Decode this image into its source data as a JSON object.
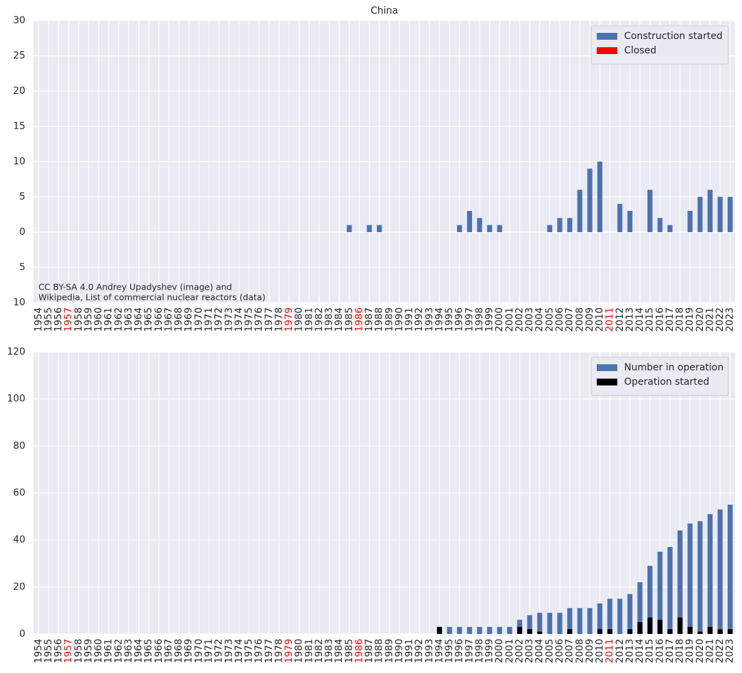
{
  "chart_data": [
    {
      "type": "bar",
      "title": "China",
      "categories": [
        "1954",
        "1955",
        "1956",
        "1957",
        "1958",
        "1959",
        "1960",
        "1961",
        "1962",
        "1963",
        "1964",
        "1965",
        "1966",
        "1967",
        "1968",
        "1969",
        "1970",
        "1971",
        "1972",
        "1973",
        "1974",
        "1975",
        "1976",
        "1977",
        "1978",
        "1979",
        "1980",
        "1981",
        "1982",
        "1983",
        "1984",
        "1985",
        "1986",
        "1987",
        "1988",
        "1989",
        "1990",
        "1991",
        "1992",
        "1993",
        "1994",
        "1995",
        "1996",
        "1997",
        "1998",
        "1999",
        "2000",
        "2001",
        "2002",
        "2003",
        "2004",
        "2005",
        "2006",
        "2007",
        "2008",
        "2009",
        "2010",
        "2011",
        "2012",
        "2013",
        "2014",
        "2015",
        "2016",
        "2017",
        "2018",
        "2019",
        "2020",
        "2021",
        "2022",
        "2023"
      ],
      "highlighted_categories": [
        "1957",
        "1979",
        "1986",
        "2011"
      ],
      "highlight_color": "#ff0000",
      "series": [
        {
          "name": "Construction started",
          "color": "#4c72b0",
          "values": [
            0,
            0,
            0,
            0,
            0,
            0,
            0,
            0,
            0,
            0,
            0,
            0,
            0,
            0,
            0,
            0,
            0,
            0,
            0,
            0,
            0,
            0,
            0,
            0,
            0,
            0,
            0,
            0,
            0,
            0,
            0,
            1,
            0,
            1,
            1,
            0,
            0,
            0,
            0,
            0,
            0,
            0,
            1,
            3,
            2,
            1,
            1,
            0,
            0,
            0,
            0,
            1,
            2,
            2,
            6,
            9,
            10,
            0,
            4,
            3,
            0,
            6,
            2,
            1,
            0,
            3,
            5,
            6,
            5,
            5
          ]
        },
        {
          "name": "Closed",
          "color": "#ff0000",
          "values": [
            0,
            0,
            0,
            0,
            0,
            0,
            0,
            0,
            0,
            0,
            0,
            0,
            0,
            0,
            0,
            0,
            0,
            0,
            0,
            0,
            0,
            0,
            0,
            0,
            0,
            0,
            0,
            0,
            0,
            0,
            0,
            0,
            0,
            0,
            0,
            0,
            0,
            0,
            0,
            0,
            0,
            0,
            0,
            0,
            0,
            0,
            0,
            0,
            0,
            0,
            0,
            0,
            0,
            0,
            0,
            0,
            0,
            0,
            0,
            0,
            0,
            0,
            0,
            0,
            0,
            0,
            0,
            0,
            0,
            0
          ]
        }
      ],
      "ylim": [
        -10,
        30
      ],
      "yticks": [
        {
          "value": -10,
          "label": "10"
        },
        {
          "value": -5,
          "label": "5"
        },
        0,
        5,
        10,
        15,
        20,
        25,
        30
      ],
      "grid": true,
      "legend": "upper right",
      "annotations": [
        "CC BY-SA 4.0 Andrey Upadyshev (image) and",
        "Wikipedia, List of commercial nuclear reactors (data)"
      ]
    },
    {
      "type": "bar",
      "categories": [
        "1954",
        "1955",
        "1956",
        "1957",
        "1958",
        "1959",
        "1960",
        "1961",
        "1962",
        "1963",
        "1964",
        "1965",
        "1966",
        "1967",
        "1968",
        "1969",
        "1970",
        "1971",
        "1972",
        "1973",
        "1974",
        "1975",
        "1976",
        "1977",
        "1978",
        "1979",
        "1980",
        "1981",
        "1982",
        "1983",
        "1984",
        "1985",
        "1986",
        "1987",
        "1988",
        "1989",
        "1990",
        "1991",
        "1992",
        "1993",
        "1994",
        "1995",
        "1996",
        "1997",
        "1998",
        "1999",
        "2000",
        "2001",
        "2002",
        "2003",
        "2004",
        "2005",
        "2006",
        "2007",
        "2008",
        "2009",
        "2010",
        "2011",
        "2012",
        "2013",
        "2014",
        "2015",
        "2016",
        "2017",
        "2018",
        "2019",
        "2020",
        "2021",
        "2022",
        "2023"
      ],
      "highlighted_categories": [
        "1957",
        "1979",
        "1986",
        "2011"
      ],
      "highlight_color": "#ff0000",
      "series": [
        {
          "name": "Number in operation",
          "color": "#4c72b0",
          "values": [
            0,
            0,
            0,
            0,
            0,
            0,
            0,
            0,
            0,
            0,
            0,
            0,
            0,
            0,
            0,
            0,
            0,
            0,
            0,
            0,
            0,
            0,
            0,
            0,
            0,
            0,
            0,
            0,
            0,
            0,
            0,
            0,
            0,
            0,
            0,
            0,
            0,
            0,
            0,
            0,
            3,
            3,
            3,
            3,
            3,
            3,
            3,
            3,
            6,
            8,
            9,
            9,
            9,
            11,
            11,
            11,
            13,
            15,
            15,
            17,
            22,
            29,
            35,
            37,
            44,
            47,
            48,
            51,
            53,
            55
          ]
        },
        {
          "name": "Operation started",
          "color": "#000000",
          "values": [
            0,
            0,
            0,
            0,
            0,
            0,
            0,
            0,
            0,
            0,
            0,
            0,
            0,
            0,
            0,
            0,
            0,
            0,
            0,
            0,
            0,
            0,
            0,
            0,
            0,
            0,
            0,
            0,
            0,
            0,
            0,
            0,
            0,
            0,
            0,
            0,
            0,
            0,
            0,
            0,
            3,
            0,
            0,
            0,
            0,
            0,
            0,
            0,
            3,
            2,
            1,
            0,
            0,
            2,
            0,
            0,
            2,
            2,
            0,
            2,
            5,
            7,
            6,
            2,
            7,
            3,
            1,
            3,
            2,
            2
          ]
        }
      ],
      "ylim": [
        0,
        120
      ],
      "yticks": [
        0,
        20,
        40,
        60,
        80,
        100,
        120
      ],
      "grid": true,
      "legend": "upper right"
    }
  ]
}
